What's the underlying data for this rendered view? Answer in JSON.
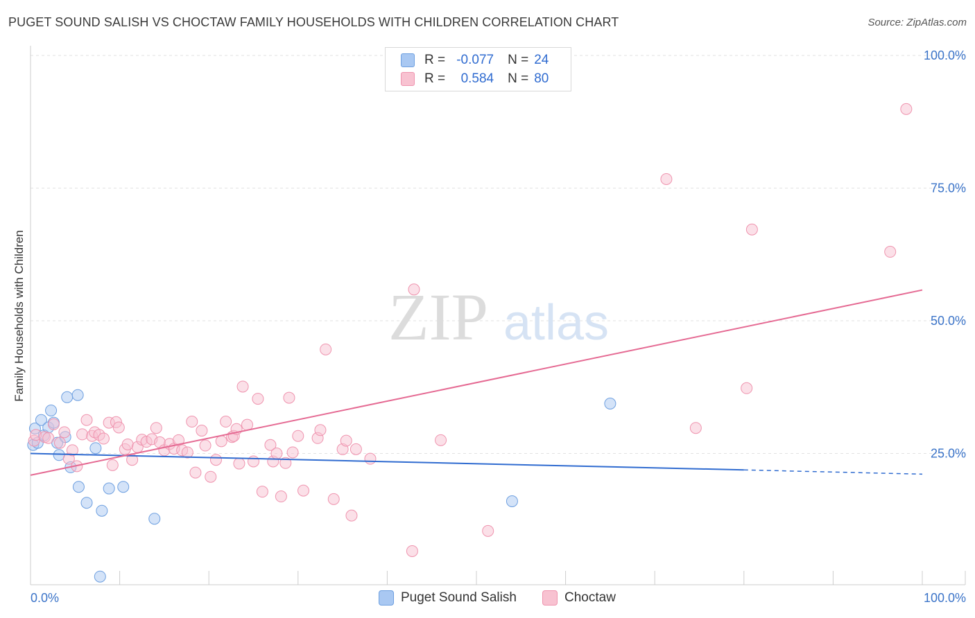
{
  "title": "PUGET SOUND SALISH VS CHOCTAW FAMILY HOUSEHOLDS WITH CHILDREN CORRELATION CHART",
  "source": "Source: ZipAtlas.com",
  "watermark": {
    "zip": "ZIP",
    "atlas": "atlas"
  },
  "legend_top": [
    {
      "r_label": "R =",
      "r_value": "-0.077",
      "n_label": "N =",
      "n_value": "24",
      "color": "#a9c8f2",
      "stroke": "#6d9fe0"
    },
    {
      "r_label": "R =",
      "r_value": "0.584",
      "n_label": "N =",
      "n_value": "80",
      "color": "#f8c2d1",
      "stroke": "#ef93ae"
    }
  ],
  "legend_bottom": [
    {
      "label": "Puget Sound Salish",
      "color": "#a9c8f2",
      "stroke": "#6d9fe0"
    },
    {
      "label": "Choctaw",
      "color": "#f8c2d1",
      "stroke": "#ef93ae"
    }
  ],
  "chart_data": {
    "type": "scatter",
    "title": "PUGET SOUND SALISH VS CHOCTAW FAMILY HOUSEHOLDS WITH CHILDREN CORRELATION CHART",
    "xlabel": "",
    "ylabel": "Family Households with Children",
    "xlim": [
      0,
      100
    ],
    "ylim": [
      0,
      100
    ],
    "x_tick_labels": [
      {
        "value": 0,
        "label": "0.0%"
      },
      {
        "value": 100,
        "label": "100.0%"
      }
    ],
    "y_tick_labels": [
      {
        "value": 25,
        "label": "25.0%"
      },
      {
        "value": 50,
        "label": "50.0%"
      },
      {
        "value": 75,
        "label": "75.0%"
      },
      {
        "value": 100,
        "label": "100.0%"
      }
    ],
    "y_grid": [
      25,
      50,
      75,
      100
    ],
    "x_ticks": [
      0,
      10,
      20,
      30,
      40,
      50,
      60,
      70,
      80,
      90,
      100
    ],
    "series": [
      {
        "name": "Puget Sound Salish",
        "color": "#a9c8f2",
        "stroke": "#6d9fe0",
        "trend": {
          "x0": 0,
          "y0": 25.0,
          "x1": 80,
          "y1": 21.9,
          "dash_to": 100,
          "dash_y": 21.1,
          "color": "#2f6bd0"
        },
        "points": [
          [
            0.3,
            26.6
          ],
          [
            0.5,
            29.7
          ],
          [
            0.8,
            27.0
          ],
          [
            1.2,
            31.3
          ],
          [
            1.5,
            28.4
          ],
          [
            2.0,
            29.9
          ],
          [
            2.3,
            33.1
          ],
          [
            2.6,
            30.8
          ],
          [
            3.0,
            27.0
          ],
          [
            3.2,
            24.7
          ],
          [
            3.9,
            28.1
          ],
          [
            4.1,
            35.6
          ],
          [
            4.5,
            22.4
          ],
          [
            5.3,
            36.0
          ],
          [
            5.4,
            18.7
          ],
          [
            6.3,
            15.7
          ],
          [
            7.3,
            26.0
          ],
          [
            8.0,
            14.2
          ],
          [
            8.8,
            18.4
          ],
          [
            10.4,
            18.7
          ],
          [
            13.9,
            12.7
          ],
          [
            7.8,
            1.8
          ],
          [
            54.0,
            16.0
          ],
          [
            65.0,
            34.4
          ]
        ]
      },
      {
        "name": "Choctaw",
        "color": "#f8c2d1",
        "stroke": "#ef93ae",
        "trend": {
          "x0": 0,
          "y0": 20.9,
          "x1": 100,
          "y1": 55.8,
          "color": "#e56a93"
        },
        "points": [
          [
            0.4,
            27.4
          ],
          [
            0.6,
            28.5
          ],
          [
            1.6,
            28.1
          ],
          [
            2.0,
            27.9
          ],
          [
            2.6,
            30.5
          ],
          [
            3.3,
            27.0
          ],
          [
            3.8,
            29.0
          ],
          [
            4.3,
            24.0
          ],
          [
            4.7,
            25.6
          ],
          [
            5.2,
            22.6
          ],
          [
            5.8,
            28.6
          ],
          [
            6.3,
            31.3
          ],
          [
            6.9,
            28.3
          ],
          [
            7.2,
            29.0
          ],
          [
            7.7,
            28.5
          ],
          [
            8.2,
            27.8
          ],
          [
            8.8,
            30.8
          ],
          [
            9.2,
            22.8
          ],
          [
            9.6,
            30.9
          ],
          [
            9.9,
            29.9
          ],
          [
            10.6,
            25.8
          ],
          [
            10.9,
            26.7
          ],
          [
            11.4,
            23.8
          ],
          [
            12.0,
            26.2
          ],
          [
            12.5,
            27.6
          ],
          [
            13.0,
            27.2
          ],
          [
            13.6,
            27.7
          ],
          [
            14.1,
            29.8
          ],
          [
            14.5,
            27.1
          ],
          [
            15.0,
            25.6
          ],
          [
            15.6,
            26.8
          ],
          [
            16.1,
            25.9
          ],
          [
            16.6,
            27.5
          ],
          [
            17.0,
            25.6
          ],
          [
            17.6,
            25.2
          ],
          [
            18.1,
            31.0
          ],
          [
            18.5,
            21.4
          ],
          [
            19.2,
            29.3
          ],
          [
            19.6,
            26.5
          ],
          [
            20.2,
            20.6
          ],
          [
            20.8,
            23.8
          ],
          [
            21.4,
            27.3
          ],
          [
            21.9,
            31.0
          ],
          [
            22.6,
            28.1
          ],
          [
            22.8,
            28.3
          ],
          [
            23.1,
            29.6
          ],
          [
            23.4,
            23.1
          ],
          [
            23.8,
            37.6
          ],
          [
            24.3,
            30.4
          ],
          [
            25.0,
            23.5
          ],
          [
            25.5,
            35.3
          ],
          [
            26.0,
            17.8
          ],
          [
            26.9,
            26.6
          ],
          [
            27.2,
            23.5
          ],
          [
            27.6,
            25.0
          ],
          [
            28.1,
            16.9
          ],
          [
            28.6,
            23.2
          ],
          [
            29.0,
            35.5
          ],
          [
            29.4,
            25.2
          ],
          [
            30.0,
            28.3
          ],
          [
            30.6,
            18.0
          ],
          [
            32.2,
            27.9
          ],
          [
            32.5,
            29.4
          ],
          [
            33.1,
            44.6
          ],
          [
            34.0,
            16.4
          ],
          [
            35.0,
            25.8
          ],
          [
            35.4,
            27.4
          ],
          [
            36.0,
            13.3
          ],
          [
            36.5,
            25.8
          ],
          [
            38.1,
            24.0
          ],
          [
            42.8,
            6.6
          ],
          [
            43.0,
            55.9
          ],
          [
            51.3,
            10.4
          ],
          [
            71.3,
            76.7
          ],
          [
            74.6,
            29.8
          ],
          [
            80.3,
            37.3
          ],
          [
            80.9,
            67.2
          ],
          [
            96.4,
            63.0
          ],
          [
            98.2,
            89.9
          ],
          [
            46.0,
            27.5
          ]
        ]
      }
    ]
  }
}
